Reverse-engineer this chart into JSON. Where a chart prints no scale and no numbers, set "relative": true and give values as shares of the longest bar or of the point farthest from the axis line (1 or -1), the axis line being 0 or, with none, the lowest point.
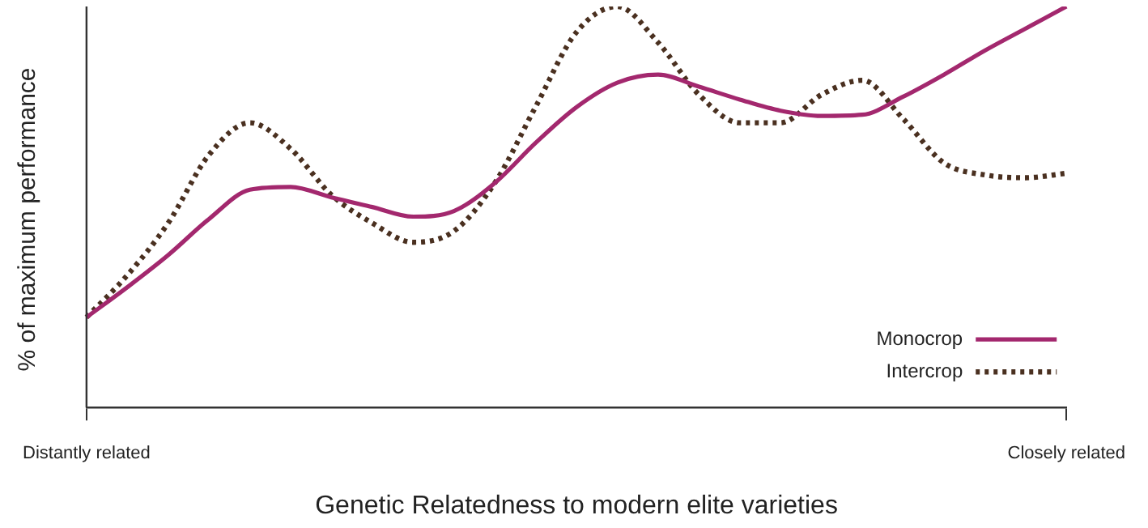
{
  "chart_data": {
    "type": "line",
    "relative": true,
    "xlabel": "Genetic Relatedness to modern elite varieties",
    "ylabel": "% of maximum performance",
    "categories": [
      "Distantly related",
      null,
      null,
      null,
      null,
      null,
      null,
      null,
      null,
      null,
      null,
      null,
      null,
      null,
      null,
      null,
      null,
      null,
      null,
      null,
      null,
      null,
      null,
      null,
      "Closely related"
    ],
    "tick_labels": "x",
    "legend": "bottom right",
    "series": [
      {
        "name": "Monocrop",
        "color": "#a3286e",
        "line_style": "solid",
        "values": [
          0.225,
          0.3,
          0.38,
          0.47,
          0.543,
          0.55,
          0.524,
          0.5,
          0.476,
          0.49,
          0.56,
          0.66,
          0.749,
          0.81,
          0.83,
          0.8,
          0.768,
          0.74,
          0.727,
          0.73,
          0.775,
          0.83,
          0.89,
          0.945,
          1.0
        ]
      },
      {
        "name": "Intercrop",
        "color": "#4a3020",
        "line_style": "dotted",
        "values": [
          0.225,
          0.33,
          0.46,
          0.63,
          0.71,
          0.645,
          0.53,
          0.46,
          0.412,
          0.44,
          0.56,
          0.75,
          0.936,
          1.0,
          0.91,
          0.78,
          0.71,
          0.71,
          0.78,
          0.816,
          0.72,
          0.61,
          0.58,
          0.573,
          0.584
        ]
      }
    ]
  }
}
